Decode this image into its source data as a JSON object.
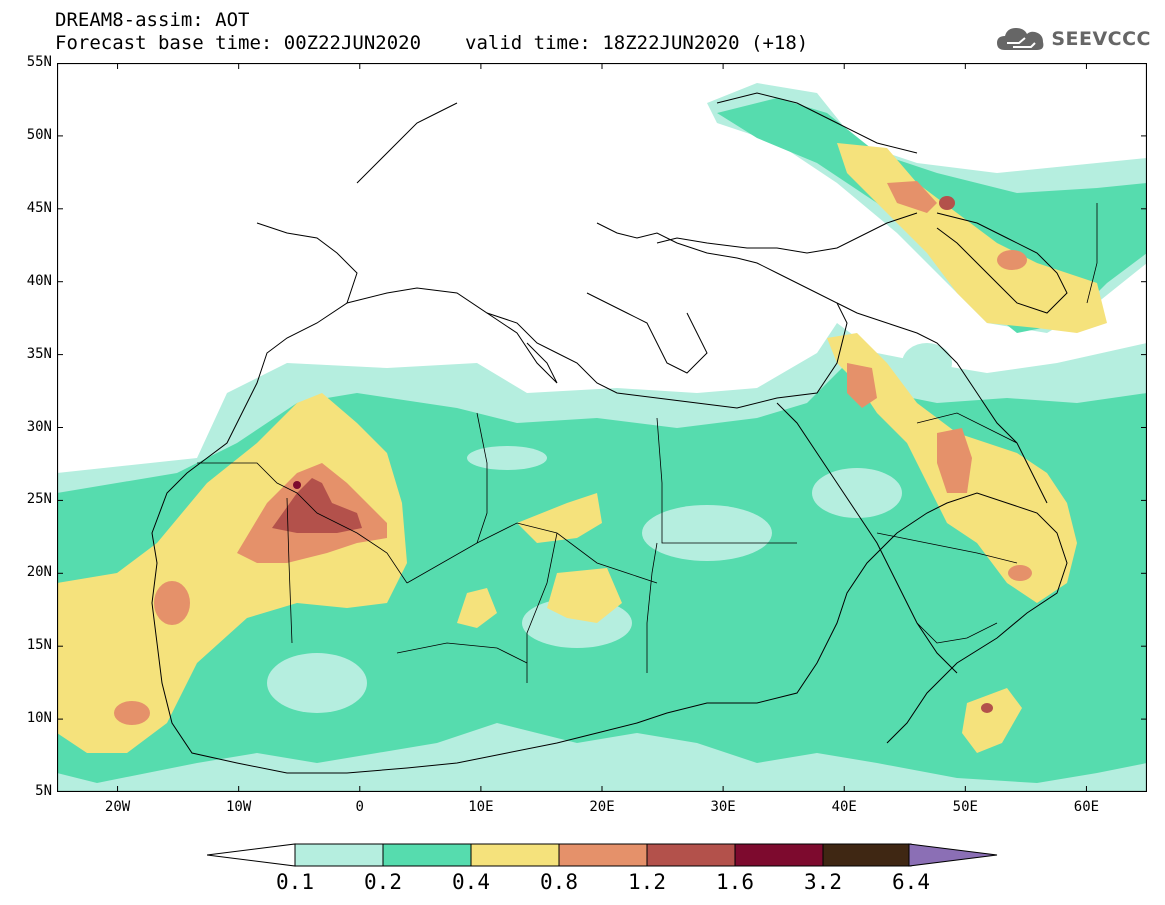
{
  "header": {
    "title": "DREAM8-assim: AOT",
    "base_time": "Forecast base time: 00Z22JUN2020",
    "valid_time": "valid time: 18Z22JUN2020 (+18)",
    "logo_text": "SEEVCCC",
    "logo_icon": "cloud-icon"
  },
  "map": {
    "lon_range": [
      -25,
      65
    ],
    "lat_range": [
      5,
      55
    ],
    "lat_labels": [
      "55N",
      "50N",
      "45N",
      "40N",
      "35N",
      "30N",
      "25N",
      "20N",
      "15N",
      "10N",
      "5N"
    ],
    "lon_labels": [
      "20W",
      "10W",
      "0",
      "10E",
      "20E",
      "30E",
      "40E",
      "50E",
      "60E"
    ]
  },
  "legend": {
    "thresholds": [
      "0.1",
      "0.2",
      "0.4",
      "0.8",
      "1.2",
      "1.6",
      "3.2",
      "6.4"
    ],
    "colors": [
      "#b5eedf",
      "#56dcae",
      "#f5e27c",
      "#e5916a",
      "#b3514b",
      "#7d0a2e",
      "#3f2713",
      "#8b6fb5"
    ]
  }
}
